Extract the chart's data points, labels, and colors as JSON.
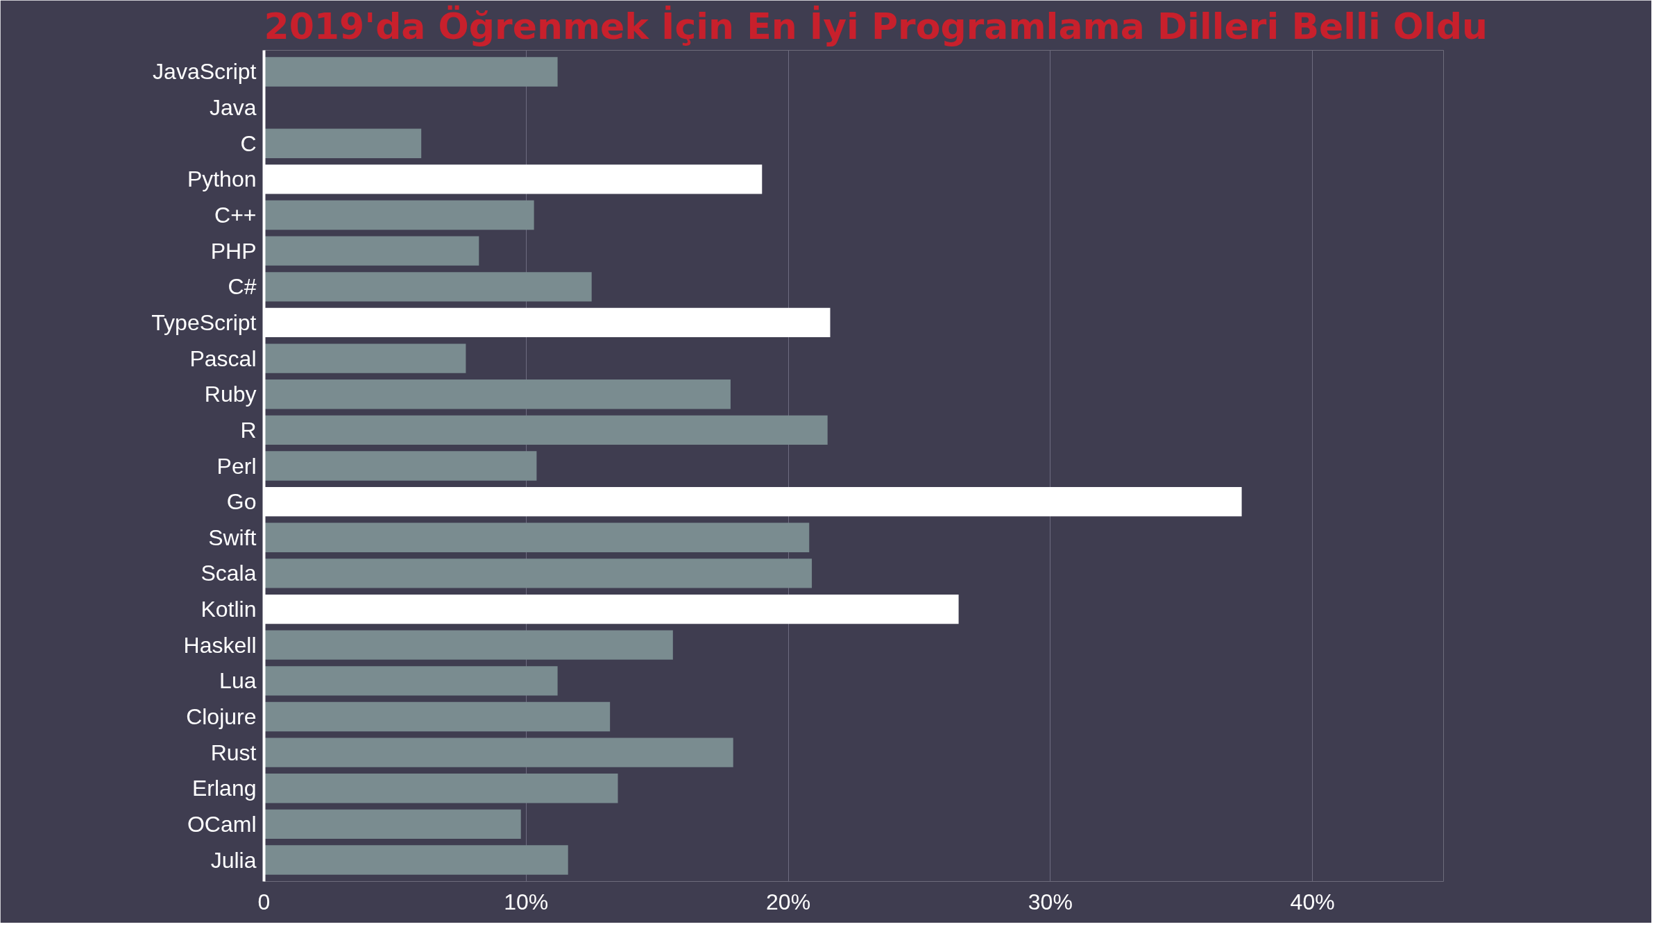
{
  "chart_data": {
    "type": "bar",
    "orientation": "horizontal",
    "title": "2019'da Öğrenmek İçin En İyi Programlama Dilleri Belli Oldu",
    "categories": [
      "JavaScript",
      "Java",
      "C",
      "Python",
      "C++",
      "PHP",
      "C#",
      "TypeScript",
      "Pascal",
      "Ruby",
      "R",
      "Perl",
      "Go",
      "Swift",
      "Scala",
      "Kotlin",
      "Haskell",
      "Lua",
      "Clojure",
      "Rust",
      "Erlang",
      "OCaml",
      "Julia"
    ],
    "values": [
      11.2,
      null,
      6.0,
      19,
      10.3,
      8.2,
      12.5,
      21.6,
      7.7,
      17.8,
      21.5,
      10.4,
      37.3,
      20.8,
      20.9,
      26.5,
      15.6,
      11.2,
      13.2,
      17.9,
      13.5,
      9.8,
      11.6
    ],
    "colors": [
      "#7a8c90",
      "#7a8c90",
      "#7a8c90",
      "#ffffff",
      "#7a8c90",
      "#7a8c90",
      "#7a8c90",
      "#ffffff",
      "#7a8c90",
      "#7a8c90",
      "#7a8c90",
      "#7a8c90",
      "#ffffff",
      "#7a8c90",
      "#7a8c90",
      "#ffffff",
      "#7a8c90",
      "#7a8c90",
      "#7a8c90",
      "#7a8c90",
      "#7a8c90",
      "#7a8c90",
      "#7a8c90"
    ],
    "xlim": [
      0,
      45
    ],
    "xticks": [
      0,
      {
        "value": 10,
        "label": "10%"
      },
      {
        "value": 20,
        "label": "20%"
      },
      {
        "value": 30,
        "label": "30%"
      },
      {
        "value": 40,
        "label": "40%"
      }
    ],
    "grid": "x"
  }
}
